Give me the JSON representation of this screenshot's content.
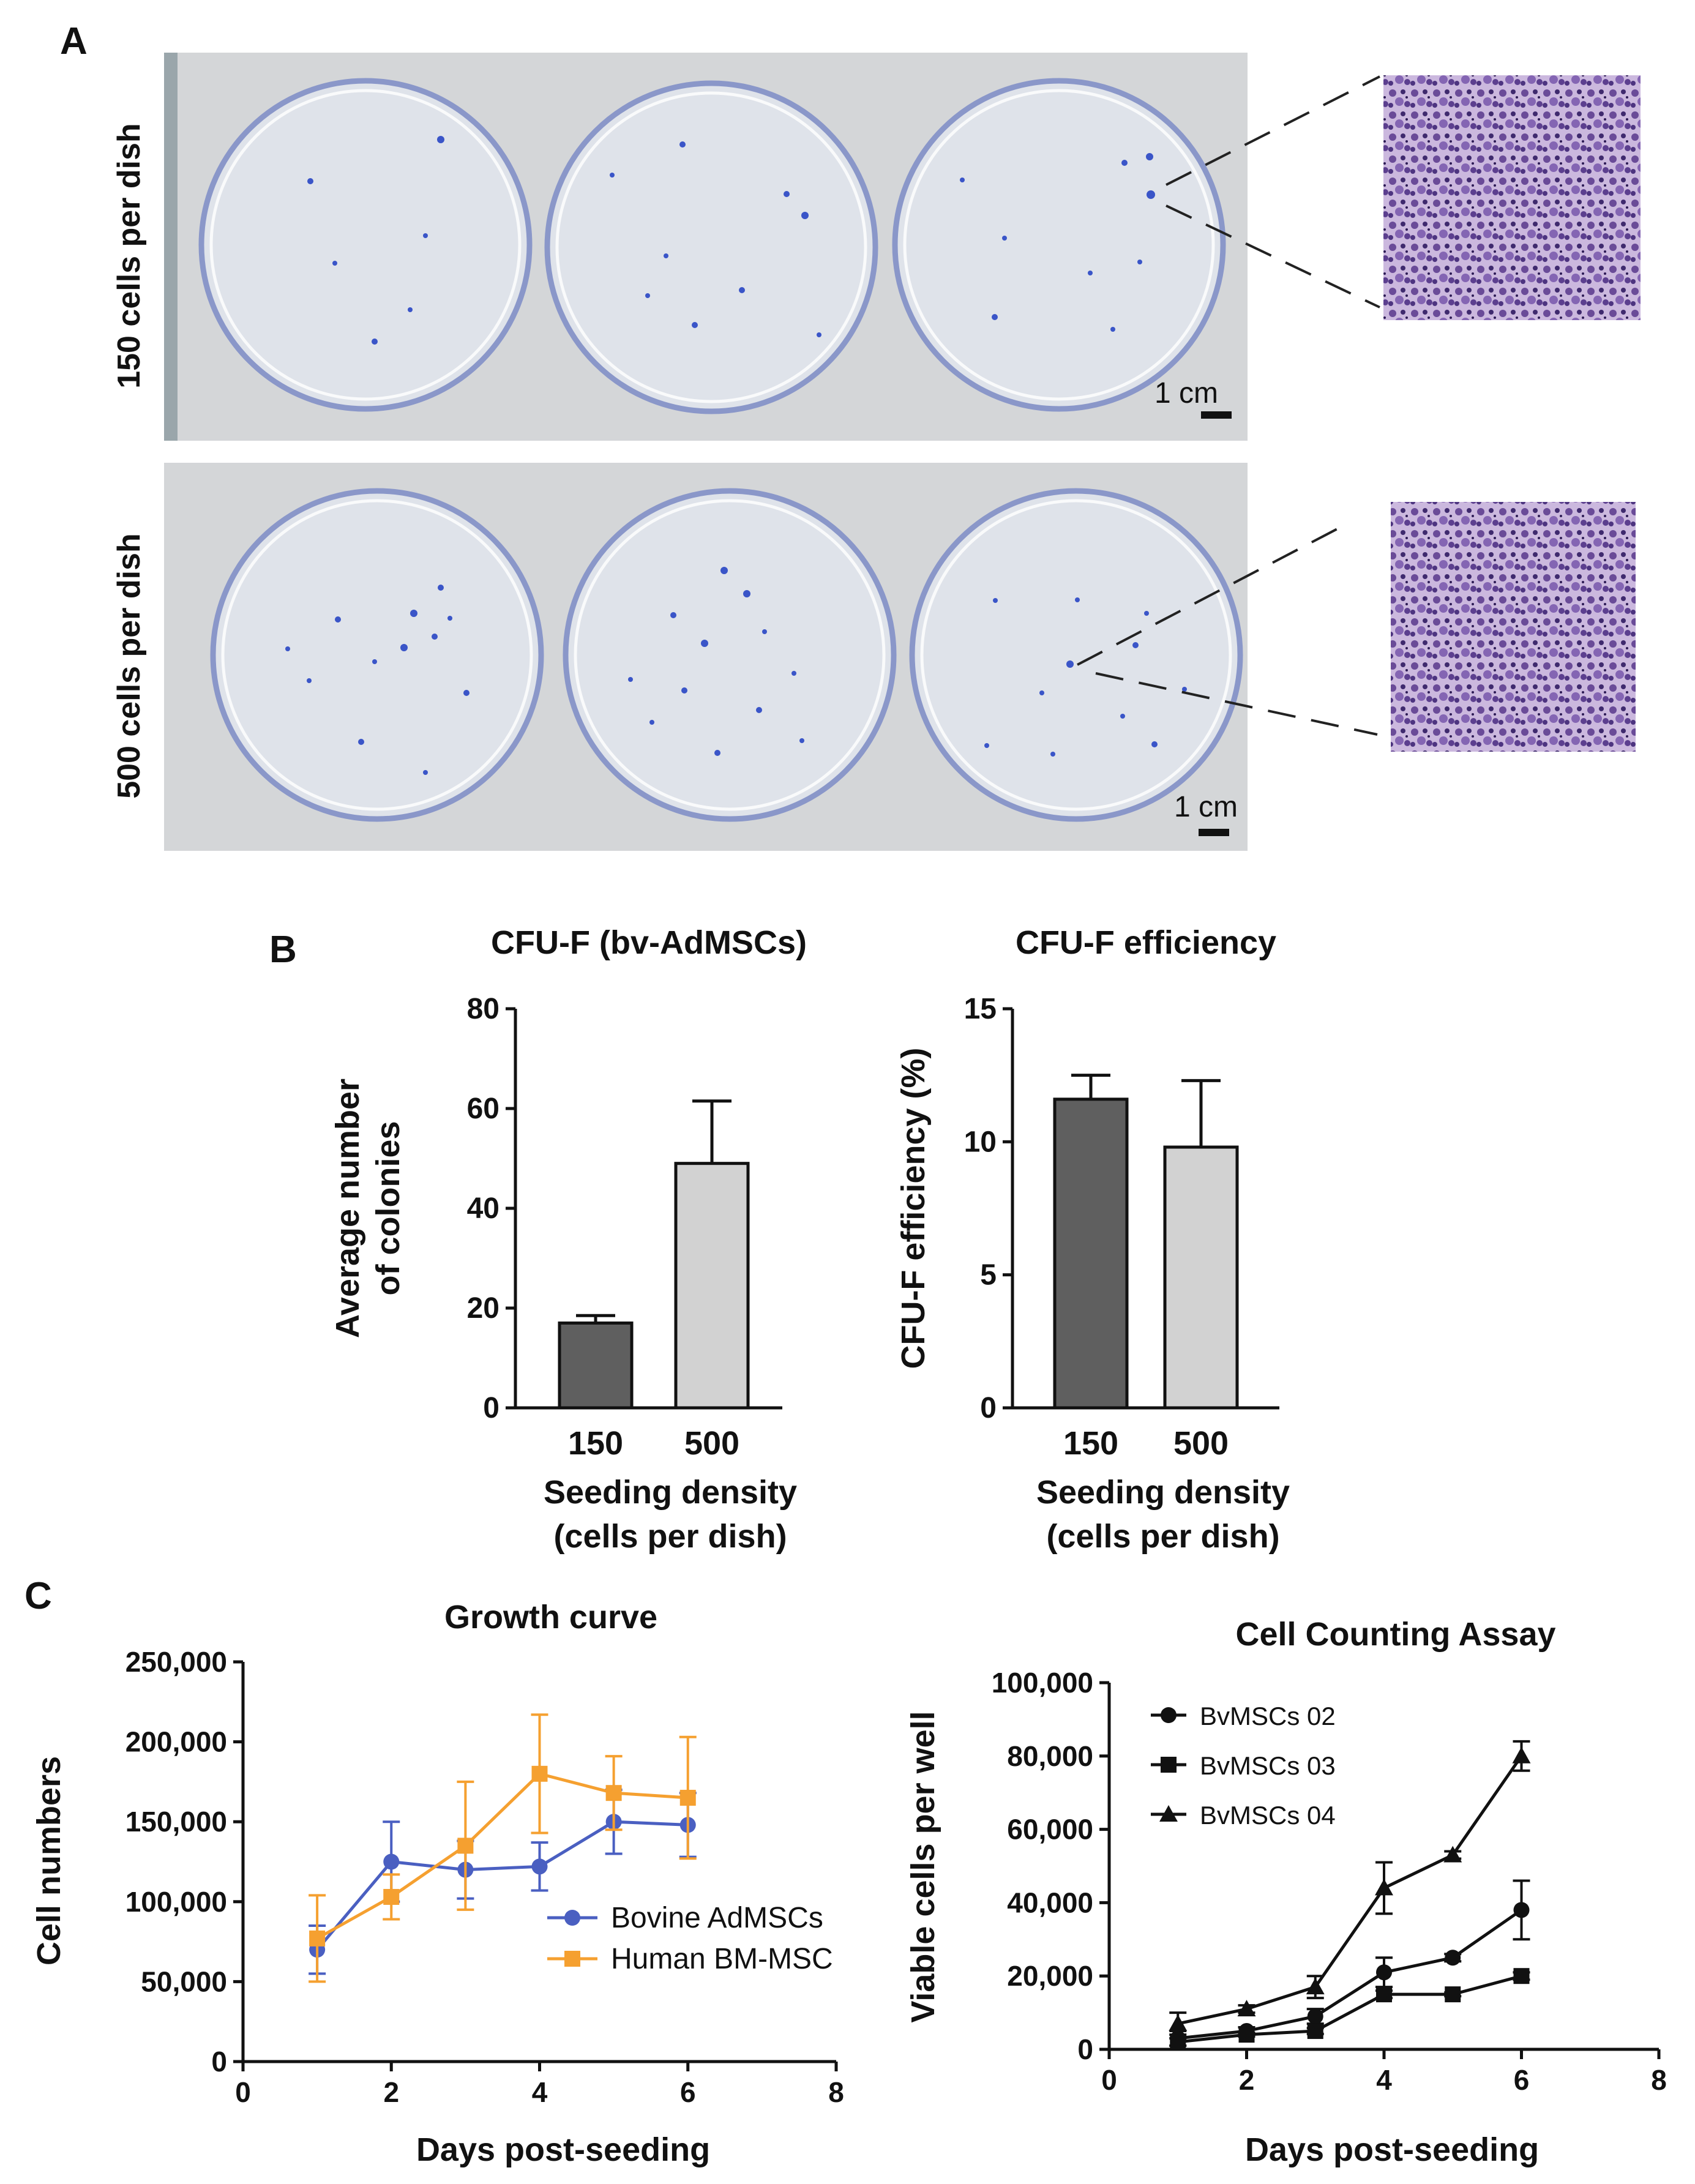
{
  "panel_a": {
    "label": "A",
    "row1_label": "150 cells per dish",
    "row2_label": "500 cells per dish",
    "scale_bar_label": "1 cm"
  },
  "panel_b": {
    "label": "B"
  },
  "panel_c": {
    "label": "C"
  },
  "colors": {
    "dark_bar": "#5f5f5f",
    "light_bar": "#d2d2d2",
    "bovine": "#4a5fc1",
    "human": "#f5a030",
    "black": "#111111",
    "stain": "#6b4a9a",
    "plate_bg": "#d4d6d8"
  },
  "chart_data": [
    {
      "id": "b1",
      "type": "bar",
      "title": "CFU-F (bv-AdMSCs)",
      "ylabel_lines": [
        "Average number",
        "of colonies"
      ],
      "xlabel_lines": [
        "Seeding density",
        "(cells per dish)"
      ],
      "categories": [
        "150",
        "500"
      ],
      "values": [
        17,
        49
      ],
      "errors": [
        1.5,
        12.5
      ],
      "ylim": [
        0,
        80
      ],
      "yticks": [
        0,
        20,
        40,
        60,
        80
      ],
      "ytick_labels": [
        "0",
        "20",
        "40",
        "60",
        "80"
      ]
    },
    {
      "id": "b2",
      "type": "bar",
      "title": "CFU-F  efficiency",
      "ylabel_lines": [
        "CFU-F efficiency (%)"
      ],
      "xlabel_lines": [
        "Seeding density",
        "(cells per dish)"
      ],
      "categories": [
        "150",
        "500"
      ],
      "values": [
        11.6,
        9.8
      ],
      "errors": [
        0.9,
        2.5
      ],
      "ylim": [
        0,
        15
      ],
      "yticks": [
        0,
        5,
        10,
        15
      ],
      "ytick_labels": [
        "0",
        "5",
        "10",
        "15"
      ]
    },
    {
      "id": "c1",
      "type": "line",
      "title": "Growth curve",
      "ylabel_lines": [
        "Cell numbers"
      ],
      "xlabel_lines": [
        "Days post-seeding"
      ],
      "xlim": [
        0,
        8
      ],
      "ylim": [
        0,
        250000
      ],
      "xticks": [
        0,
        2,
        4,
        6,
        8
      ],
      "xtick_labels": [
        "0",
        "2",
        "4",
        "6",
        "8"
      ],
      "yticks": [
        0,
        50000,
        100000,
        150000,
        200000,
        250000
      ],
      "ytick_labels": [
        "0",
        "50,000",
        "100,000",
        "150,000",
        "200,000",
        "250,000"
      ],
      "series": [
        {
          "name": "Bovine AdMSCs",
          "marker": "circle",
          "color": "#4a5fc1",
          "x": [
            1,
            2,
            3,
            4,
            5,
            6
          ],
          "y": [
            70000,
            125000,
            120000,
            122000,
            150000,
            148000
          ],
          "err": [
            15000,
            25000,
            18000,
            15000,
            20000,
            20000
          ]
        },
        {
          "name": "Human BM-MSC",
          "marker": "square",
          "color": "#f5a030",
          "x": [
            1,
            2,
            3,
            4,
            5,
            6
          ],
          "y": [
            77000,
            103000,
            135000,
            180000,
            168000,
            165000
          ],
          "err": [
            27000,
            14000,
            40000,
            37000,
            23000,
            38000
          ]
        }
      ]
    },
    {
      "id": "c2",
      "type": "line",
      "title": "Cell Counting Assay",
      "ylabel_lines": [
        "Viable cells per well"
      ],
      "xlabel_lines": [
        "Days post-seeding"
      ],
      "xlim": [
        0,
        8
      ],
      "ylim": [
        0,
        100000
      ],
      "xticks": [
        0,
        2,
        4,
        6,
        8
      ],
      "xtick_labels": [
        "0",
        "2",
        "4",
        "6",
        "8"
      ],
      "yticks": [
        0,
        20000,
        40000,
        60000,
        80000,
        100000
      ],
      "ytick_labels": [
        "0",
        "20,000",
        "40,000",
        "60,000",
        "80,000",
        "100,000"
      ],
      "series": [
        {
          "name": "BvMSCs 02",
          "marker": "circle",
          "color": "#111111",
          "x": [
            1,
            2,
            3,
            4,
            5,
            6
          ],
          "y": [
            3000,
            5000,
            9000,
            21000,
            25000,
            38000
          ],
          "err": [
            2000,
            1000,
            2000,
            4000,
            1000,
            8000
          ]
        },
        {
          "name": "BvMSCs 03",
          "marker": "square",
          "color": "#111111",
          "x": [
            1,
            2,
            3,
            4,
            5,
            6
          ],
          "y": [
            2000,
            4000,
            5000,
            15000,
            15000,
            20000
          ],
          "err": [
            1000,
            500,
            800,
            1000,
            500,
            1000
          ]
        },
        {
          "name": "BvMSCs 04",
          "marker": "triangle",
          "color": "#111111",
          "x": [
            1,
            2,
            3,
            4,
            5,
            6
          ],
          "y": [
            7000,
            11000,
            17000,
            44000,
            53000,
            80000
          ],
          "err": [
            3000,
            1000,
            3000,
            7000,
            1000,
            4000
          ]
        }
      ]
    }
  ]
}
